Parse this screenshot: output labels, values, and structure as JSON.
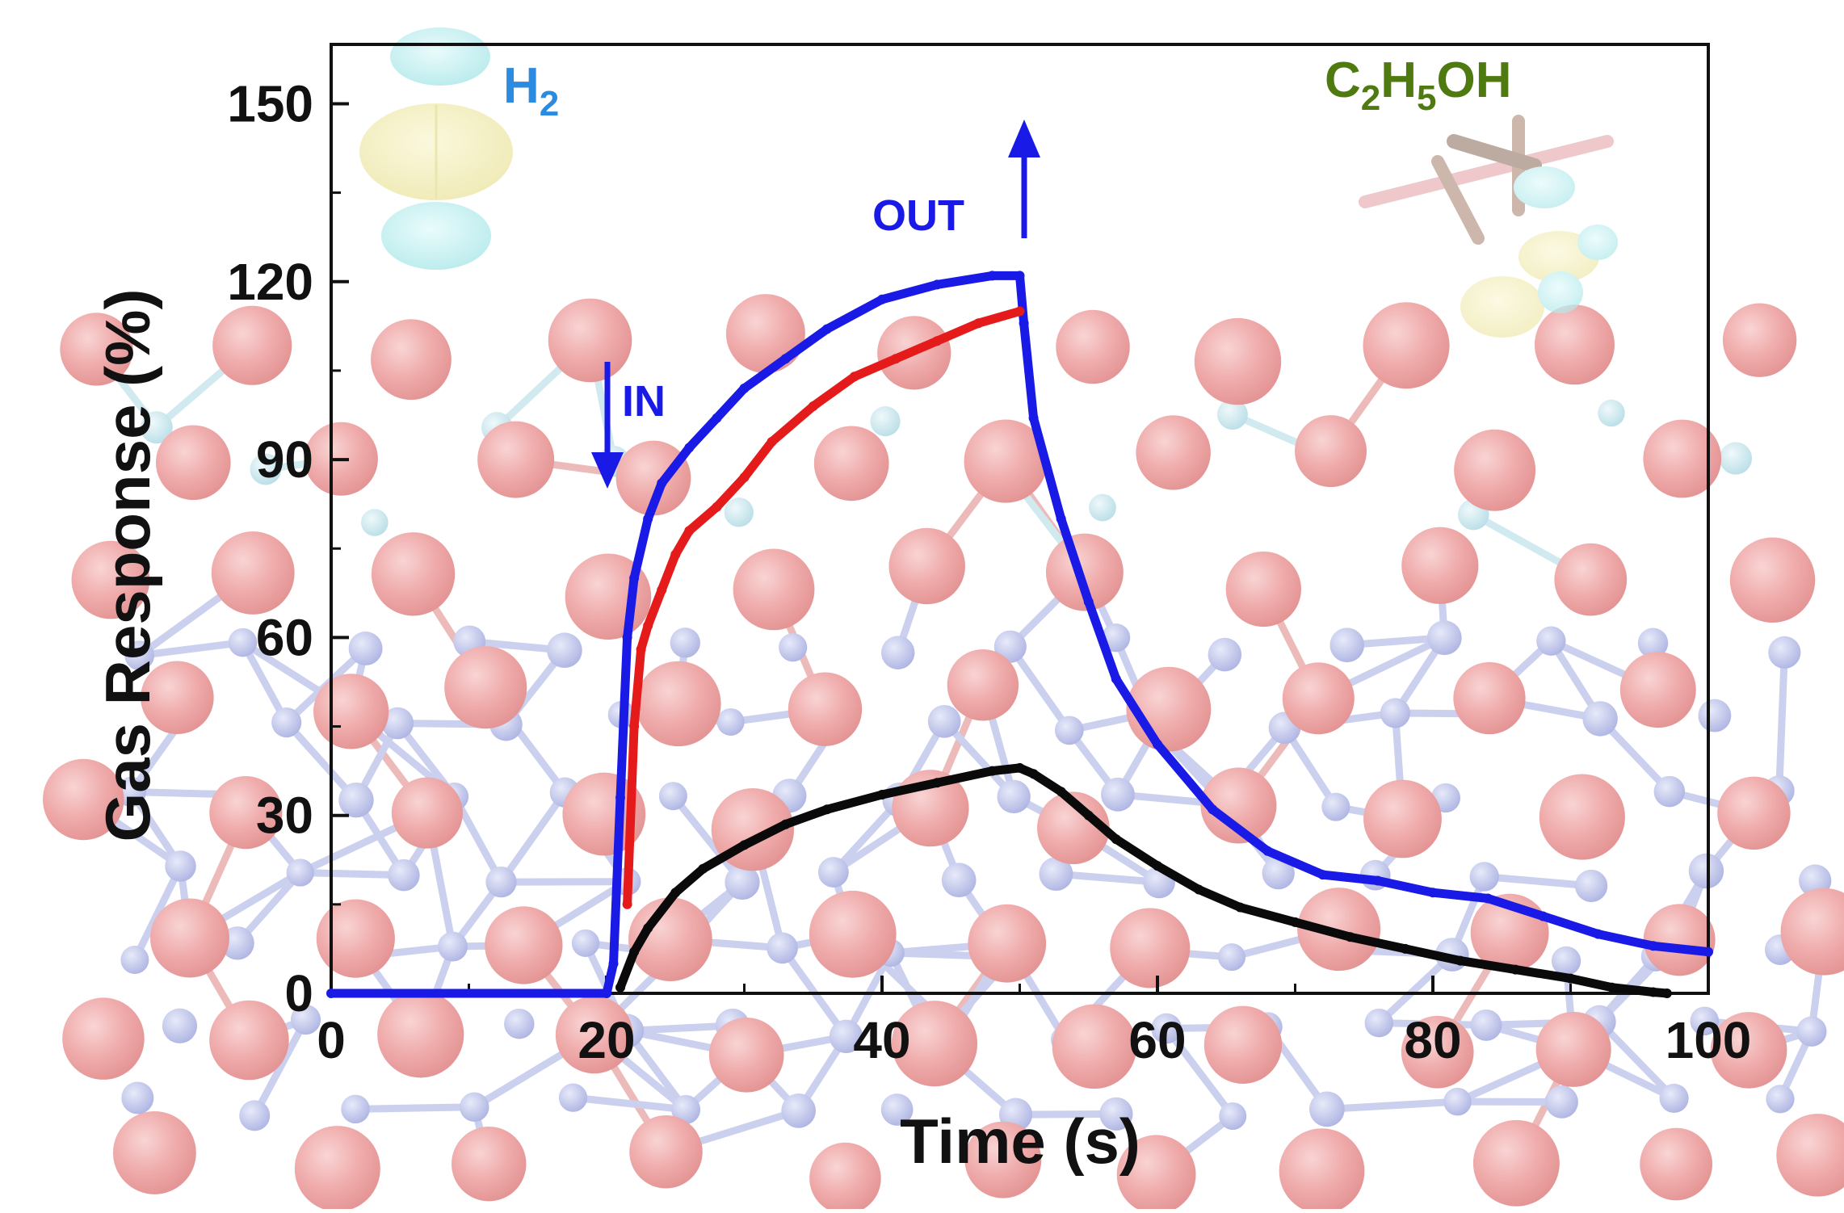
{
  "chart_data": {
    "type": "line",
    "title": "",
    "xlabel": "Time (s)",
    "ylabel": "Gas Response (%)",
    "xlim": [
      0,
      100
    ],
    "ylim": [
      0,
      160
    ],
    "xticks": [
      0,
      20,
      40,
      60,
      80,
      100
    ],
    "yticks": [
      0,
      30,
      60,
      90,
      120,
      150
    ],
    "grid": false,
    "legend": "none",
    "series": [
      {
        "color": "#1a1ae6",
        "x": [
          0,
          20,
          20.5,
          21,
          21.5,
          22,
          23,
          24,
          26,
          28,
          30,
          33,
          36,
          40,
          44,
          48,
          50,
          50.3,
          51,
          53,
          55,
          57,
          60,
          64,
          68,
          72,
          76,
          80,
          84,
          88,
          92,
          96,
          100
        ],
        "y": [
          0,
          0,
          5,
          33,
          60,
          70,
          80,
          86,
          92,
          97,
          102,
          107,
          112,
          117,
          119.5,
          121,
          121,
          113,
          97,
          80,
          66,
          53,
          42,
          31,
          24,
          20,
          19,
          17,
          16,
          13,
          10,
          8,
          7
        ]
      },
      {
        "color": "#e51b1b",
        "x": [
          21.5,
          22,
          22.5,
          23,
          24,
          25,
          26,
          28,
          30,
          32,
          35,
          38,
          41,
          44,
          47,
          50
        ],
        "y": [
          15,
          45,
          58,
          62,
          68,
          74,
          78,
          82,
          87,
          93,
          99,
          104,
          107,
          110,
          113,
          115
        ]
      },
      {
        "color": "#0a0a0a",
        "x": [
          21,
          22,
          23,
          25,
          27,
          30,
          33,
          36,
          40,
          44,
          48,
          50,
          51,
          53,
          55,
          57,
          60,
          63,
          66,
          70,
          74,
          78,
          82,
          86,
          90,
          93,
          96,
          97
        ],
        "y": [
          1,
          7,
          11,
          17,
          21,
          25,
          28.5,
          31,
          33.5,
          35.5,
          37.5,
          38,
          37,
          34,
          30,
          26,
          21.5,
          17.5,
          14.5,
          12,
          9.5,
          7.5,
          5.5,
          4,
          2.5,
          1,
          0.2,
          0
        ]
      }
    ],
    "annotations": {
      "in_label": "IN",
      "out_label": "OUT",
      "h2_label_main": "H",
      "h2_label_sub": "2",
      "ethanol_parts": [
        "C",
        "2",
        "H",
        "5",
        "OH"
      ]
    },
    "colors": {
      "axis": "#111111",
      "h2_text": "#2a8be0",
      "ethanol_text": "#4f7a10",
      "arrow": "#1a1ae6",
      "atom_o": "#e88080",
      "atom_n": "#9aa3de",
      "atom_ti": "#a9d8e3"
    }
  }
}
